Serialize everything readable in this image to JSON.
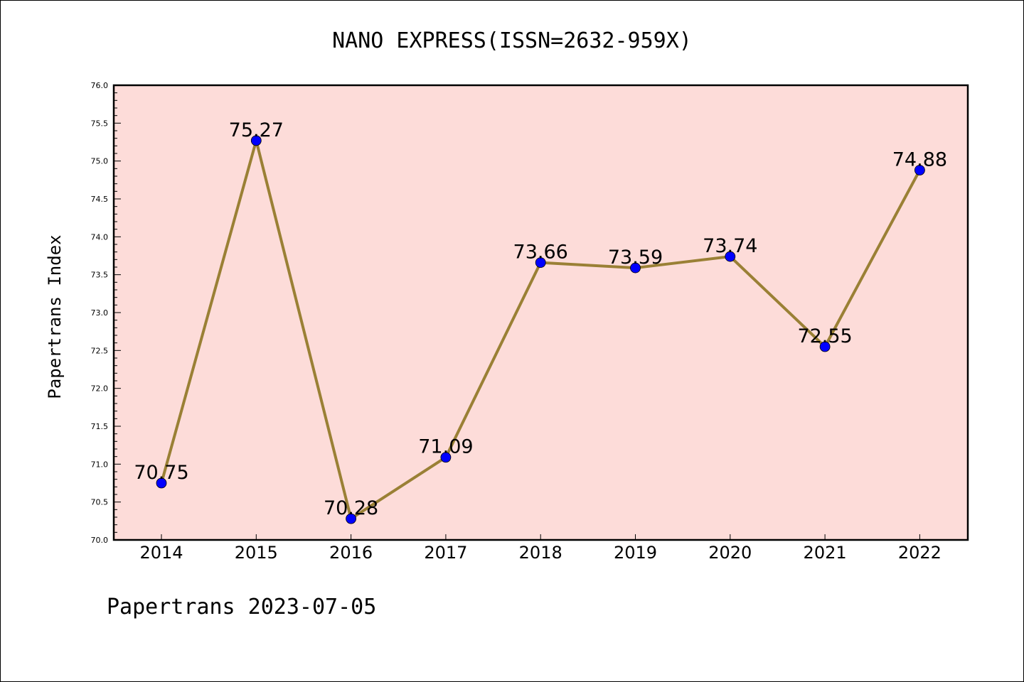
{
  "chart_data": {
    "type": "line",
    "title": "NANO EXPRESS(ISSN=2632-959X)",
    "ylabel": "Papertrans Index",
    "xlabel": "",
    "categories": [
      "2014",
      "2015",
      "2016",
      "2017",
      "2018",
      "2019",
      "2020",
      "2021",
      "2022"
    ],
    "values": [
      70.75,
      75.27,
      70.28,
      71.09,
      73.66,
      73.59,
      73.74,
      72.55,
      74.88
    ],
    "data_labels": [
      "70.75",
      "75.27",
      "70.28",
      "71.09",
      "73.66",
      "73.59",
      "73.74",
      "72.55",
      "74.88"
    ],
    "ylim": [
      70.0,
      76.0
    ],
    "yticks": [
      "70.0",
      "70.5",
      "71.0",
      "71.5",
      "72.0",
      "72.5",
      "73.0",
      "73.5",
      "74.0",
      "74.5",
      "75.0",
      "75.5",
      "76.0"
    ],
    "grid": false,
    "colors": {
      "plot_background": "#fddcd9",
      "line": "#9a8035",
      "marker": "#0000ff"
    }
  },
  "footer": "Papertrans 2023-07-05"
}
